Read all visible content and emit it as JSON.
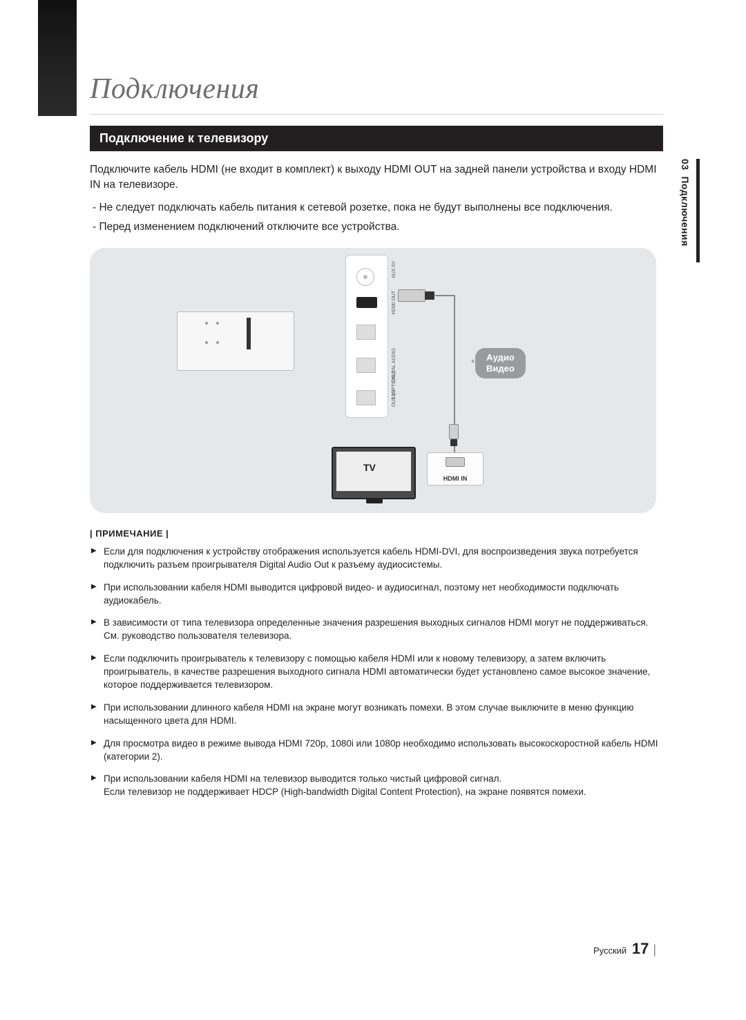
{
  "colors": {
    "page_bg": "#ffffff",
    "body_text": "#231f20",
    "muted_text": "#6d6e71",
    "diagram_bg": "#e6e7e8",
    "section_header_bg": "#231f20",
    "section_header_text": "#ffffff",
    "callout_bg": "#9a9b9c",
    "callout_text": "#ffffff",
    "rule": "#d1d3d4"
  },
  "typography": {
    "chapter_title_fontsize_pt": 32,
    "section_header_fontsize_pt": 14,
    "body_fontsize_pt": 12,
    "note_fontsize_pt": 10.5,
    "footer_page_fontsize_pt": 16
  },
  "chapter": {
    "title": "Подключения"
  },
  "section": {
    "header": "Подключение к телевизору",
    "intro": "Подключите кабель HDMI (не входит в комплект) к выходу HDMI OUT на задней панели устройства и входу HDMI IN на телевизоре.",
    "bullets": [
      "Не следует подключать кабель питания к сетевой розетке, пока не будут выполнены все подключения.",
      "Перед изменением подключений отключите все устройства."
    ]
  },
  "diagram": {
    "rear_panel_ports": {
      "dc": "AUX 5V",
      "hdmi_out": "HDMI OUT",
      "digital_audio1": "DIGITAL AUDIO",
      "digital_audio2": "OUT (OPTICAL)",
      "lan": "LAN"
    },
    "tv_label": "TV",
    "hdmi_in_label": "HDMI IN",
    "callout_line1": "Аудио",
    "callout_line2": "Видео"
  },
  "notes": {
    "heading": "| ПРИМЕЧАНИЕ |",
    "items": [
      "Если для подключения к устройству отображения используется кабель HDMI-DVI, для воспроизведения звука потребуется подключить разъем проигрывателя Digital Audio Out к разъему аудиосистемы.",
      "При использовании кабеля HDMI выводится цифровой видео- и аудиосигнал, поэтому нет необходимости подключать аудиокабель.",
      "В зависимости от типа телевизора определенные значения разрешения выходных сигналов HDMI могут не поддерживаться. См. руководство пользователя телевизора.",
      "Если подключить проигрыватель к телевизору с помощью кабеля HDMI или к новому телевизору, а затем включить проигрыватель, в качестве разрешения выходного сигнала HDMI автоматически будет установлено самое высокое значение, которое поддерживается телевизором.",
      "При использовании длинного кабеля HDMI на экране могут возникать помехи. В этом случае выключите в меню функцию насыщенного цвета для HDMI.",
      "Для просмотра видео в режиме вывода HDMI 720p, 1080i или 1080p необходимо использовать высокоскоростной кабель HDMI (категории 2).",
      "При использовании кабеля HDMI на телевизор выводится только чистый цифровой сигнал.\nЕсли телевизор не поддерживает HDCP (High-bandwidth Digital Content Protection), на экране появятся помехи."
    ]
  },
  "side_tab": {
    "number": "03",
    "label": "Подключения"
  },
  "footer": {
    "language": "Русский",
    "page": "17",
    "pipe": "|"
  }
}
